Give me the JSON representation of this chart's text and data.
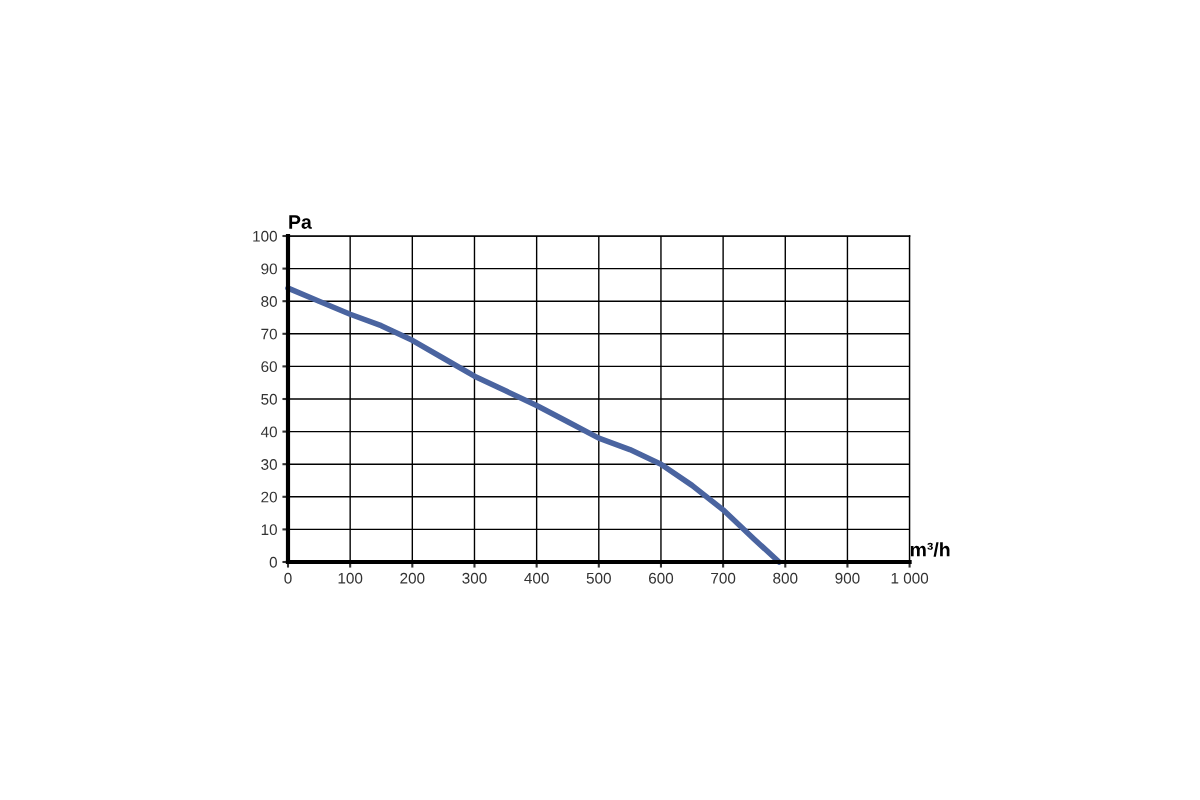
{
  "chart_data": {
    "type": "line",
    "ylabel": "Pa",
    "xlabel": "m³/h",
    "x": [
      0,
      50,
      100,
      150,
      200,
      250,
      300,
      350,
      400,
      450,
      500,
      550,
      600,
      650,
      700,
      750,
      790
    ],
    "series": [
      {
        "color": "#4a64a0",
        "values": [
          84,
          80,
          76,
          72.5,
          68,
          62.5,
          57,
          52.5,
          48,
          43,
          38,
          34.5,
          30,
          23.5,
          16,
          7,
          0
        ]
      }
    ],
    "xlim": [
      0,
      1000
    ],
    "xticks": [
      0,
      100,
      200,
      300,
      400,
      500,
      600,
      700,
      800,
      900,
      {
        "value": 1000,
        "label": "1 000"
      }
    ],
    "ylim": [
      0,
      100
    ],
    "yticks": [
      0,
      10,
      20,
      30,
      40,
      50,
      60,
      70,
      80,
      90,
      100
    ],
    "grid": true,
    "marker": "none",
    "line_style": "solid"
  }
}
